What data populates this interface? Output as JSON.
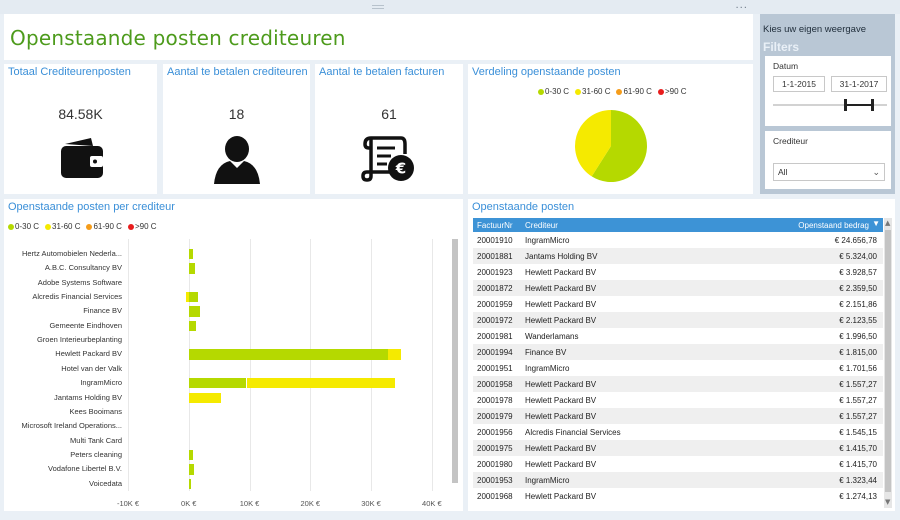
{
  "page": {
    "title": "Openstaande posten crediteuren",
    "menu_dots": "..."
  },
  "kpis": [
    {
      "title": "Totaal Crediteurenposten",
      "value": "84.58K",
      "icon": "wallet-icon"
    },
    {
      "title": "Aantal te betalen crediteuren",
      "value": "18",
      "icon": "person-icon"
    },
    {
      "title": "Aantal te betalen facturen",
      "value": "61",
      "icon": "invoice-euro-icon"
    }
  ],
  "legend": [
    {
      "label": "0-30 C",
      "color": "#b5d900"
    },
    {
      "label": "31-60 C",
      "color": "#f5ea00"
    },
    {
      "label": "61-90 C",
      "color": "#f59c1a"
    },
    {
      "label": ">90 C",
      "color": "#e81c1c"
    }
  ],
  "donut": {
    "title": "Verdeling openstaande posten",
    "slices": [
      {
        "label": "0-30 C",
        "fraction": 0.59,
        "color": "#b5d900"
      },
      {
        "label": "31-60 C",
        "fraction": 0.41,
        "color": "#f5ea00"
      }
    ]
  },
  "filters": {
    "heading": "Kies uw eigen weergave",
    "subheading": "Filters",
    "date_label": "Datum",
    "date_from": "1-1-2015",
    "date_to": "31-1-2017",
    "creditor_label": "Crediteur",
    "creditor_value": "All",
    "chevron_icon": "chevron-down-icon"
  },
  "chart_data": {
    "type": "bar",
    "orientation": "horizontal",
    "stacked": true,
    "title": "Openstaande posten per crediteur",
    "categories": [
      "Hertz Automobielen Nederla...",
      "A.B.C. Consultancy BV",
      "Adobe Systems Software",
      "Alcredis Financial Services",
      "Finance BV",
      "Gemeente Eindhoven",
      "Groen Interieurbeplanting",
      "Hewlett Packard BV",
      "Hotel van der Valk",
      "IngramMicro",
      "Jantams Holding BV",
      "Kees Booimans",
      "Microsoft Ireland Operations...",
      "Multi Tank Card",
      "Peters cleaning",
      "Vodafone Libertel B.V.",
      "Voicedata"
    ],
    "series": [
      {
        "name": "0-30 C",
        "color": "#b5d900",
        "values": [
          700,
          1100,
          0,
          1545,
          1815,
          1200,
          0,
          32800,
          0,
          9500,
          0,
          0,
          0,
          0,
          700,
          800,
          300
        ]
      },
      {
        "name": "31-60 C",
        "color": "#f5ea00",
        "values": [
          0,
          0,
          0,
          -500,
          0,
          0,
          0,
          2200,
          0,
          24400,
          5324,
          0,
          0,
          0,
          0,
          0,
          0
        ]
      },
      {
        "name": "61-90 C",
        "color": "#f59c1a",
        "values": [
          0,
          0,
          0,
          0,
          0,
          0,
          0,
          0,
          0,
          0,
          0,
          0,
          0,
          0,
          0,
          0,
          0
        ]
      },
      {
        "name": ">90 C",
        "color": "#e81c1c",
        "values": [
          0,
          0,
          0,
          0,
          0,
          0,
          0,
          0,
          0,
          0,
          0,
          0,
          0,
          0,
          0,
          0,
          0
        ]
      }
    ],
    "x_ticks": [
      "-10K €",
      "0K €",
      "10K €",
      "20K €",
      "30K €",
      "40K €"
    ],
    "x_tick_values": [
      -10000,
      0,
      10000,
      20000,
      30000,
      40000
    ],
    "xlim": [
      -10000,
      42000
    ],
    "legend_position": "top-left",
    "grid": true
  },
  "table": {
    "title": "Openstaande posten",
    "columns": [
      "FactuurNr",
      "Crediteur",
      "Openstaand bedrag"
    ],
    "sort_icon": "sort-desc-icon",
    "rows": [
      [
        "20001910",
        "IngramMicro",
        "€ 24.656,78"
      ],
      [
        "20001881",
        "Jantams Holding BV",
        "€ 5.324,00"
      ],
      [
        "20001923",
        "Hewlett Packard BV",
        "€ 3.928,57"
      ],
      [
        "20001872",
        "Hewlett Packard BV",
        "€ 2.359,50"
      ],
      [
        "20001959",
        "Hewlett Packard BV",
        "€ 2.151,86"
      ],
      [
        "20001972",
        "Hewlett Packard BV",
        "€ 2.123,55"
      ],
      [
        "20001981",
        "Wanderlamans",
        "€ 1.996,50"
      ],
      [
        "20001994",
        "Finance BV",
        "€ 1.815,00"
      ],
      [
        "20001951",
        "IngramMicro",
        "€ 1.701,56"
      ],
      [
        "20001958",
        "Hewlett Packard BV",
        "€ 1.557,27"
      ],
      [
        "20001978",
        "Hewlett Packard BV",
        "€ 1.557,27"
      ],
      [
        "20001979",
        "Hewlett Packard BV",
        "€ 1.557,27"
      ],
      [
        "20001956",
        "Alcredis Financial Services",
        "€ 1.545,15"
      ],
      [
        "20001975",
        "Hewlett Packard BV",
        "€ 1.415,70"
      ],
      [
        "20001980",
        "Hewlett Packard BV",
        "€ 1.415,70"
      ],
      [
        "20001953",
        "IngramMicro",
        "€ 1.323,44"
      ],
      [
        "20001968",
        "Hewlett Packard BV",
        "€ 1.274,13"
      ]
    ]
  }
}
